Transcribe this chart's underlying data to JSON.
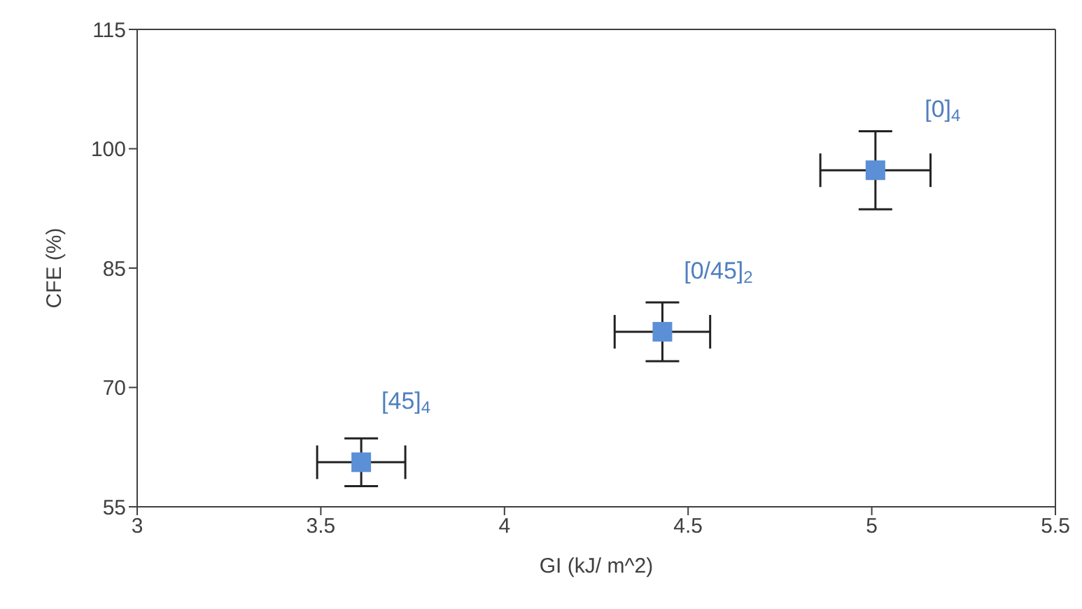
{
  "chart_data": {
    "type": "scatter",
    "xlabel": "GI  (kJ/ m^2)",
    "ylabel": "CFE (%)",
    "x": [
      3.61,
      4.43,
      5.01
    ],
    "series": [
      {
        "color": "#5b8fd6",
        "values": [
          60.6,
          77.0,
          97.3
        ],
        "errors": [
          3,
          3.7,
          4.9
        ],
        "xerrors": [
          0.12,
          0.13,
          0.15
        ]
      }
    ],
    "xlim": [
      3,
      5.5
    ],
    "xticks": [
      3,
      3.5,
      4,
      4.5,
      5,
      5.5
    ],
    "ylim": [
      55,
      115
    ],
    "yticks": [
      55,
      70,
      85,
      100,
      115
    ],
    "marker": "square",
    "annotations": [
      "[45]$_{4}$",
      "[0/45]$_{2}$",
      "[0]$_{4}$"
    ]
  }
}
